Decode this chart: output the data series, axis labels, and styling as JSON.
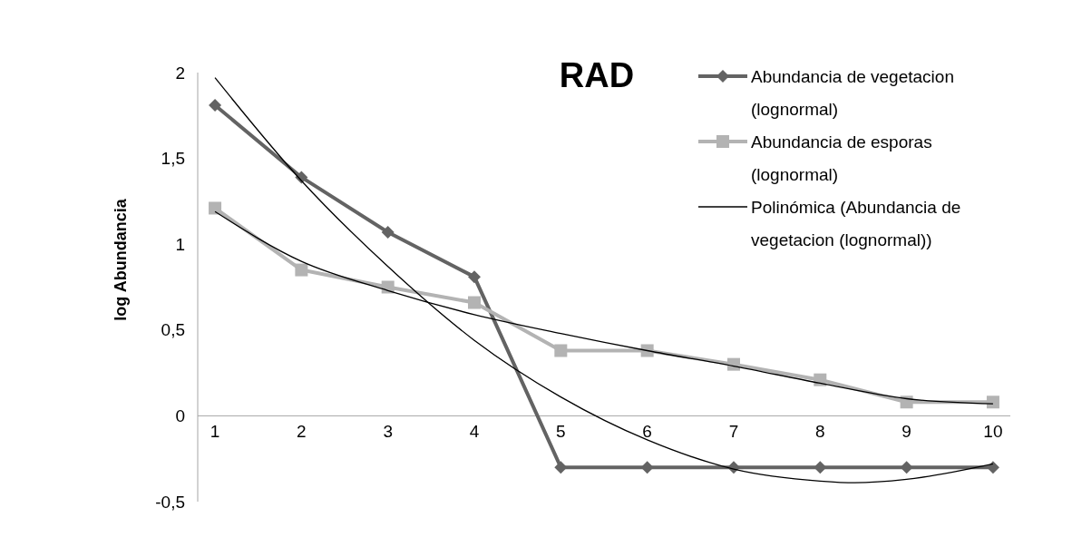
{
  "chart_data": {
    "type": "line",
    "title": "RAD",
    "ylabel": "log Abundancia",
    "xlim": [
      0.8,
      10.2
    ],
    "xticks": [
      1,
      2,
      3,
      4,
      5,
      6,
      7,
      8,
      9,
      10
    ],
    "ylim": [
      -0.5,
      2
    ],
    "yticks": [
      {
        "value": -0.5,
        "label": "-0,5"
      },
      0,
      {
        "value": 0.5,
        "label": "0,5"
      },
      1,
      {
        "value": 1.5,
        "label": "1,5"
      },
      2
    ],
    "grid": false,
    "legend": "top right",
    "series": [
      {
        "name": "Abundancia de vegetacion (lognormal)",
        "color": "#636363",
        "marker": "diamond",
        "x": [
          1,
          2,
          3,
          4,
          5,
          6,
          7,
          8,
          9,
          10
        ],
        "values": [
          1.81,
          1.39,
          1.07,
          0.81,
          -0.3,
          -0.3,
          -0.3,
          -0.3,
          -0.3,
          -0.3
        ]
      },
      {
        "name": "Abundancia de esporas (lognormal)",
        "color": "#b3b3b3",
        "marker": "square",
        "x": [
          1,
          2,
          3,
          4,
          5,
          6,
          7,
          8,
          9,
          10
        ],
        "values": [
          1.21,
          0.85,
          0.75,
          0.66,
          0.38,
          0.38,
          0.3,
          0.21,
          0.08,
          0.08
        ]
      },
      {
        "name": "Polinómica (Abundancia de vegetacion (lognormal))",
        "color": "#000000",
        "marker": "none",
        "x": [
          1,
          2,
          3,
          4,
          5,
          6,
          7,
          8,
          8.4,
          9,
          10
        ],
        "values": [
          1.97,
          1.37,
          0.87,
          0.44,
          0.11,
          -0.14,
          -0.31,
          -0.38,
          -0.39,
          -0.37,
          -0.28
        ]
      },
      {
        "color": "#000000",
        "marker": "none",
        "x": [
          1,
          2,
          3,
          4,
          5,
          6,
          7,
          8,
          9,
          10
        ],
        "values": [
          1.19,
          0.9,
          0.73,
          0.59,
          0.48,
          0.38,
          0.29,
          0.19,
          0.1,
          0.07
        ]
      }
    ]
  }
}
